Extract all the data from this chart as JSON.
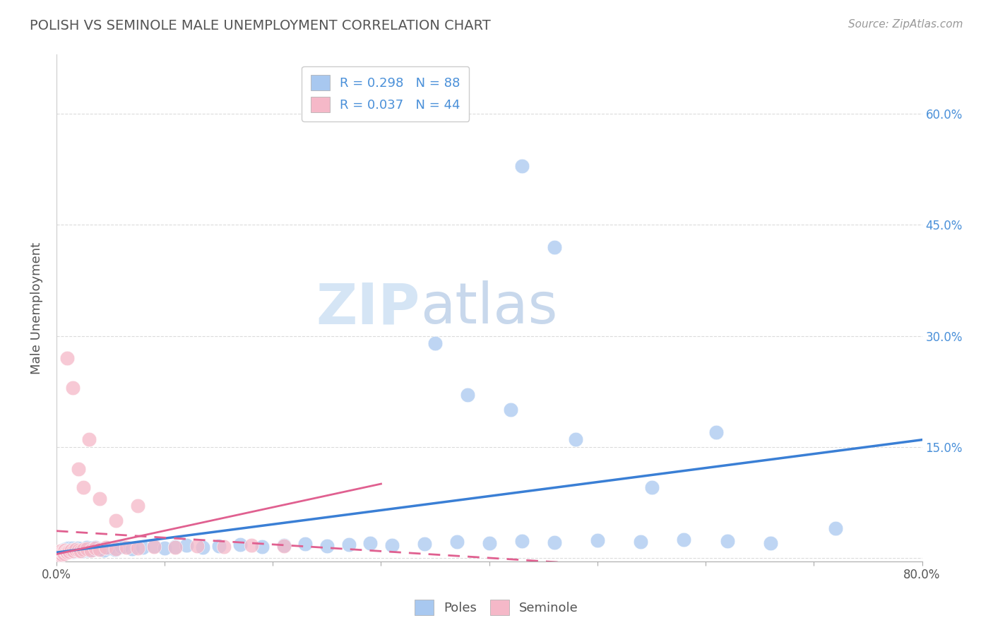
{
  "title": "POLISH VS SEMINOLE MALE UNEMPLOYMENT CORRELATION CHART",
  "source": "Source: ZipAtlas.com",
  "ylabel": "Male Unemployment",
  "xlim": [
    0.0,
    0.8
  ],
  "ylim": [
    -0.005,
    0.68
  ],
  "poles_color": "#a8c8f0",
  "seminole_color": "#f5b8c8",
  "poles_line_color": "#3a7fd5",
  "seminole_line_color": "#e06090",
  "background_color": "#ffffff",
  "grid_color": "#cccccc",
  "title_color": "#555555",
  "legend_r_poles": "R = 0.298",
  "legend_n_poles": "N = 88",
  "legend_r_seminole": "R = 0.037",
  "legend_n_seminole": "N = 44",
  "poles_x": [
    0.001,
    0.002,
    0.002,
    0.003,
    0.003,
    0.003,
    0.004,
    0.004,
    0.004,
    0.004,
    0.005,
    0.005,
    0.005,
    0.005,
    0.006,
    0.006,
    0.006,
    0.007,
    0.007,
    0.007,
    0.008,
    0.008,
    0.009,
    0.009,
    0.01,
    0.01,
    0.011,
    0.011,
    0.012,
    0.012,
    0.013,
    0.014,
    0.015,
    0.015,
    0.016,
    0.017,
    0.018,
    0.019,
    0.02,
    0.021,
    0.022,
    0.024,
    0.026,
    0.028,
    0.03,
    0.032,
    0.034,
    0.036,
    0.04,
    0.044,
    0.048,
    0.054,
    0.06,
    0.07,
    0.08,
    0.09,
    0.1,
    0.11,
    0.12,
    0.135,
    0.15,
    0.17,
    0.19,
    0.21,
    0.23,
    0.25,
    0.27,
    0.29,
    0.31,
    0.34,
    0.37,
    0.4,
    0.43,
    0.46,
    0.5,
    0.54,
    0.58,
    0.62,
    0.66,
    0.72,
    0.35,
    0.42,
    0.48,
    0.55,
    0.43,
    0.38,
    0.46,
    0.61
  ],
  "poles_y": [
    0.003,
    0.005,
    0.004,
    0.006,
    0.004,
    0.007,
    0.005,
    0.007,
    0.006,
    0.008,
    0.005,
    0.007,
    0.009,
    0.006,
    0.008,
    0.01,
    0.006,
    0.009,
    0.007,
    0.011,
    0.007,
    0.01,
    0.008,
    0.012,
    0.009,
    0.011,
    0.008,
    0.013,
    0.009,
    0.012,
    0.01,
    0.011,
    0.008,
    0.013,
    0.01,
    0.012,
    0.009,
    0.011,
    0.013,
    0.01,
    0.012,
    0.009,
    0.011,
    0.014,
    0.01,
    0.013,
    0.011,
    0.014,
    0.012,
    0.01,
    0.013,
    0.011,
    0.015,
    0.012,
    0.014,
    0.016,
    0.013,
    0.015,
    0.017,
    0.014,
    0.016,
    0.018,
    0.015,
    0.017,
    0.019,
    0.016,
    0.018,
    0.02,
    0.017,
    0.019,
    0.022,
    0.02,
    0.023,
    0.021,
    0.024,
    0.022,
    0.025,
    0.023,
    0.02,
    0.04,
    0.29,
    0.2,
    0.16,
    0.095,
    0.53,
    0.22,
    0.42,
    0.17
  ],
  "seminole_x": [
    0.001,
    0.002,
    0.003,
    0.003,
    0.004,
    0.004,
    0.005,
    0.005,
    0.006,
    0.007,
    0.007,
    0.008,
    0.009,
    0.01,
    0.011,
    0.012,
    0.014,
    0.016,
    0.018,
    0.02,
    0.022,
    0.025,
    0.028,
    0.032,
    0.036,
    0.04,
    0.046,
    0.055,
    0.065,
    0.075,
    0.09,
    0.11,
    0.13,
    0.155,
    0.18,
    0.21,
    0.01,
    0.015,
    0.02,
    0.025,
    0.03,
    0.04,
    0.055,
    0.075
  ],
  "seminole_y": [
    0.004,
    0.006,
    0.005,
    0.008,
    0.006,
    0.009,
    0.005,
    0.008,
    0.007,
    0.009,
    0.006,
    0.01,
    0.008,
    0.007,
    0.009,
    0.008,
    0.01,
    0.009,
    0.011,
    0.01,
    0.009,
    0.011,
    0.012,
    0.01,
    0.013,
    0.011,
    0.014,
    0.012,
    0.014,
    0.013,
    0.015,
    0.014,
    0.016,
    0.015,
    0.017,
    0.016,
    0.27,
    0.23,
    0.12,
    0.095,
    0.16,
    0.08,
    0.05,
    0.07
  ],
  "watermark_zip_color": "#c5d8ee",
  "watermark_atlas_color": "#c5d8ee"
}
